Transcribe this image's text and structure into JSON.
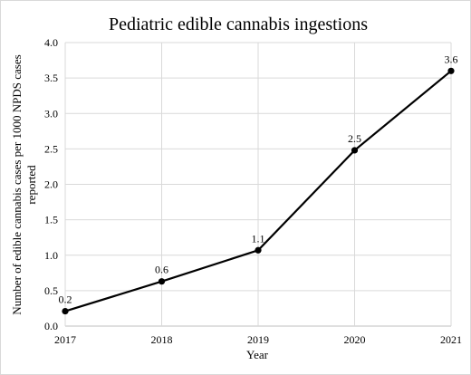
{
  "chart_data": {
    "type": "line",
    "title": "Pediatric edible cannabis ingestions",
    "xlabel": "Year",
    "ylabel_lines": [
      "Number of  edible cannabis cases per 1000 NPDS cases",
      "reported"
    ],
    "categories": [
      "2017",
      "2018",
      "2019",
      "2020",
      "2021"
    ],
    "series": [
      {
        "values": [
          0.21,
          0.63,
          1.07,
          2.48,
          3.6
        ]
      }
    ],
    "data_labels": [
      "0.2",
      "0.6",
      "1.1",
      "2.5",
      "3.6"
    ],
    "ylim": [
      0,
      4
    ],
    "y_ticks": [
      "0.0",
      "0.5",
      "1.0",
      "1.5",
      "2.0",
      "2.5",
      "3.0",
      "3.5",
      "4.0"
    ],
    "grid": true,
    "legend": "none",
    "line_color": "#000000",
    "grid_color": "#d9d9d9"
  }
}
